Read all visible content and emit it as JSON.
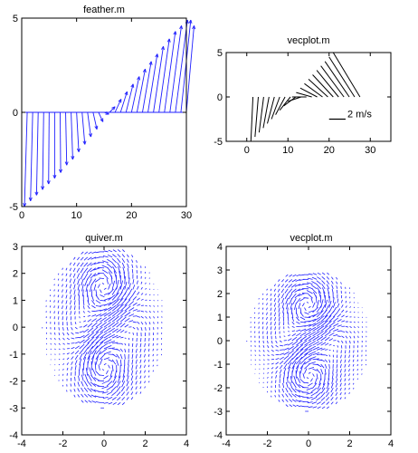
{
  "chart_data": [
    {
      "id": "feather",
      "type": "vector",
      "title": "feather.m",
      "xlim": [
        0,
        30
      ],
      "ylim": [
        -5,
        5
      ],
      "xticks": [
        0,
        10,
        20,
        30
      ],
      "yticks": [
        -5,
        0,
        5
      ],
      "baseline": 0,
      "color": "#1f1fff",
      "vectors": [
        {
          "x": 1,
          "u": -0.5,
          "v": -5.0
        },
        {
          "x": 2,
          "u": -0.4,
          "v": -4.7
        },
        {
          "x": 3,
          "u": -0.3,
          "v": -4.4
        },
        {
          "x": 4,
          "u": -0.2,
          "v": -4.1
        },
        {
          "x": 5,
          "u": -0.1,
          "v": -3.8
        },
        {
          "x": 6,
          "u": 0.0,
          "v": -3.5
        },
        {
          "x": 7,
          "u": 0.1,
          "v": -3.2
        },
        {
          "x": 8,
          "u": 0.2,
          "v": -2.8
        },
        {
          "x": 9,
          "u": 0.3,
          "v": -2.5
        },
        {
          "x": 10,
          "u": 0.4,
          "v": -2.1
        },
        {
          "x": 11,
          "u": 0.5,
          "v": -1.7
        },
        {
          "x": 12,
          "u": 0.6,
          "v": -1.3
        },
        {
          "x": 13,
          "u": 0.7,
          "v": -0.9
        },
        {
          "x": 14,
          "u": 0.8,
          "v": -0.5
        },
        {
          "x": 15,
          "u": 0.9,
          "v": -0.1
        },
        {
          "x": 16,
          "u": 1.0,
          "v": 0.3
        },
        {
          "x": 17,
          "u": 1.1,
          "v": 0.7
        },
        {
          "x": 18,
          "u": 1.2,
          "v": 1.1
        },
        {
          "x": 19,
          "u": 1.3,
          "v": 1.5
        },
        {
          "x": 20,
          "u": 1.4,
          "v": 1.9
        },
        {
          "x": 21,
          "u": 1.5,
          "v": 2.3
        },
        {
          "x": 22,
          "u": 1.6,
          "v": 2.7
        },
        {
          "x": 23,
          "u": 1.7,
          "v": 3.1
        },
        {
          "x": 24,
          "u": 1.8,
          "v": 3.5
        },
        {
          "x": 25,
          "u": 1.9,
          "v": 3.9
        },
        {
          "x": 26,
          "u": 2.0,
          "v": 4.3
        },
        {
          "x": 27,
          "u": 2.1,
          "v": 4.6
        },
        {
          "x": 28,
          "u": 2.2,
          "v": 4.9
        },
        {
          "x": 29,
          "u": 1.8,
          "v": 4.9
        },
        {
          "x": 30,
          "u": 1.4,
          "v": 4.6
        }
      ]
    },
    {
      "id": "vecplot1",
      "type": "vector",
      "title": "vecplot.m",
      "xlim": [
        -5,
        35
      ],
      "ylim": [
        -5,
        5
      ],
      "xticks": [
        0,
        10,
        20,
        30
      ],
      "yticks": [
        -5,
        0,
        5
      ],
      "color": "#000000",
      "scale_label": "2 m/s",
      "scale_bar": {
        "x0": 20,
        "x1": 24,
        "y": -2.5
      },
      "vectors": [
        {
          "x": 1,
          "y": -5.0,
          "u": 0.5,
          "v": 5.0
        },
        {
          "x": 2,
          "y": -4.5,
          "u": 0.8,
          "v": 4.5
        },
        {
          "x": 3,
          "y": -4.0,
          "u": 1.1,
          "v": 4.0
        },
        {
          "x": 4,
          "y": -3.5,
          "u": 1.4,
          "v": 3.5
        },
        {
          "x": 5,
          "y": -3.0,
          "u": 1.7,
          "v": 3.0
        },
        {
          "x": 6,
          "y": -2.5,
          "u": 2.0,
          "v": 2.5
        },
        {
          "x": 7,
          "y": -2.0,
          "u": 2.3,
          "v": 2.0
        },
        {
          "x": 8,
          "y": -1.5,
          "u": 2.6,
          "v": 1.5
        },
        {
          "x": 9,
          "y": -1.0,
          "u": 2.9,
          "v": 1.0
        },
        {
          "x": 10,
          "y": -0.5,
          "u": 3.2,
          "v": 0.5
        },
        {
          "x": 11,
          "y": 0.0,
          "u": 3.5,
          "v": 0.0
        },
        {
          "x": 12,
          "y": 0.5,
          "u": 3.8,
          "v": -0.5
        },
        {
          "x": 13,
          "y": 1.0,
          "u": 4.1,
          "v": -1.0
        },
        {
          "x": 14,
          "y": 1.5,
          "u": 4.4,
          "v": -1.5
        },
        {
          "x": 15,
          "y": 2.0,
          "u": 4.7,
          "v": -2.0
        },
        {
          "x": 16,
          "y": 2.5,
          "u": 5.0,
          "v": -2.5
        },
        {
          "x": 17,
          "y": 3.0,
          "u": 5.3,
          "v": -3.0
        },
        {
          "x": 18,
          "y": 3.5,
          "u": 5.6,
          "v": -3.5
        },
        {
          "x": 19,
          "y": 4.0,
          "u": 5.9,
          "v": -4.0
        },
        {
          "x": 20,
          "y": 4.5,
          "u": 6.2,
          "v": -4.5
        },
        {
          "x": 21,
          "y": 5.0,
          "u": 6.5,
          "v": -5.0
        }
      ]
    },
    {
      "id": "quiver",
      "type": "quiver",
      "title": "quiver.m",
      "xlim": [
        -4,
        4
      ],
      "ylim": [
        -4,
        3
      ],
      "xticks": [
        -4,
        -2,
        0,
        2,
        4
      ],
      "yticks": [
        -4,
        -3,
        -2,
        -1,
        0,
        1,
        2,
        3
      ],
      "color": "#1f1fff",
      "grid_spacing": 0.2,
      "field_domain": {
        "rx": 3.0,
        "ry": 3.0
      },
      "vortices": [
        {
          "x": 0.0,
          "y": 1.5,
          "strength": 1.0
        },
        {
          "x": 0.0,
          "y": -1.5,
          "strength": -1.0
        },
        {
          "x": -1.2,
          "y": 0.0,
          "strength": 0.4
        },
        {
          "x": 1.2,
          "y": 0.0,
          "strength": -0.4
        }
      ]
    },
    {
      "id": "vecplot2",
      "type": "quiver",
      "title": "vecplot.m",
      "xlim": [
        -4,
        4
      ],
      "ylim": [
        -4,
        4
      ],
      "xticks": [
        -4,
        -2,
        0,
        2,
        4
      ],
      "yticks": [
        -4,
        -3,
        -2,
        -1,
        0,
        1,
        2,
        3,
        4
      ],
      "color": "#1f1fff",
      "grid_spacing": 0.2,
      "field_domain": {
        "rx": 3.0,
        "ry": 3.0
      },
      "vortices": [
        {
          "x": 0.0,
          "y": 1.5,
          "strength": 1.0
        },
        {
          "x": 0.0,
          "y": -1.5,
          "strength": -1.0
        },
        {
          "x": -1.2,
          "y": 0.0,
          "strength": 0.4
        },
        {
          "x": 1.2,
          "y": 0.0,
          "strength": -0.4
        }
      ]
    }
  ]
}
